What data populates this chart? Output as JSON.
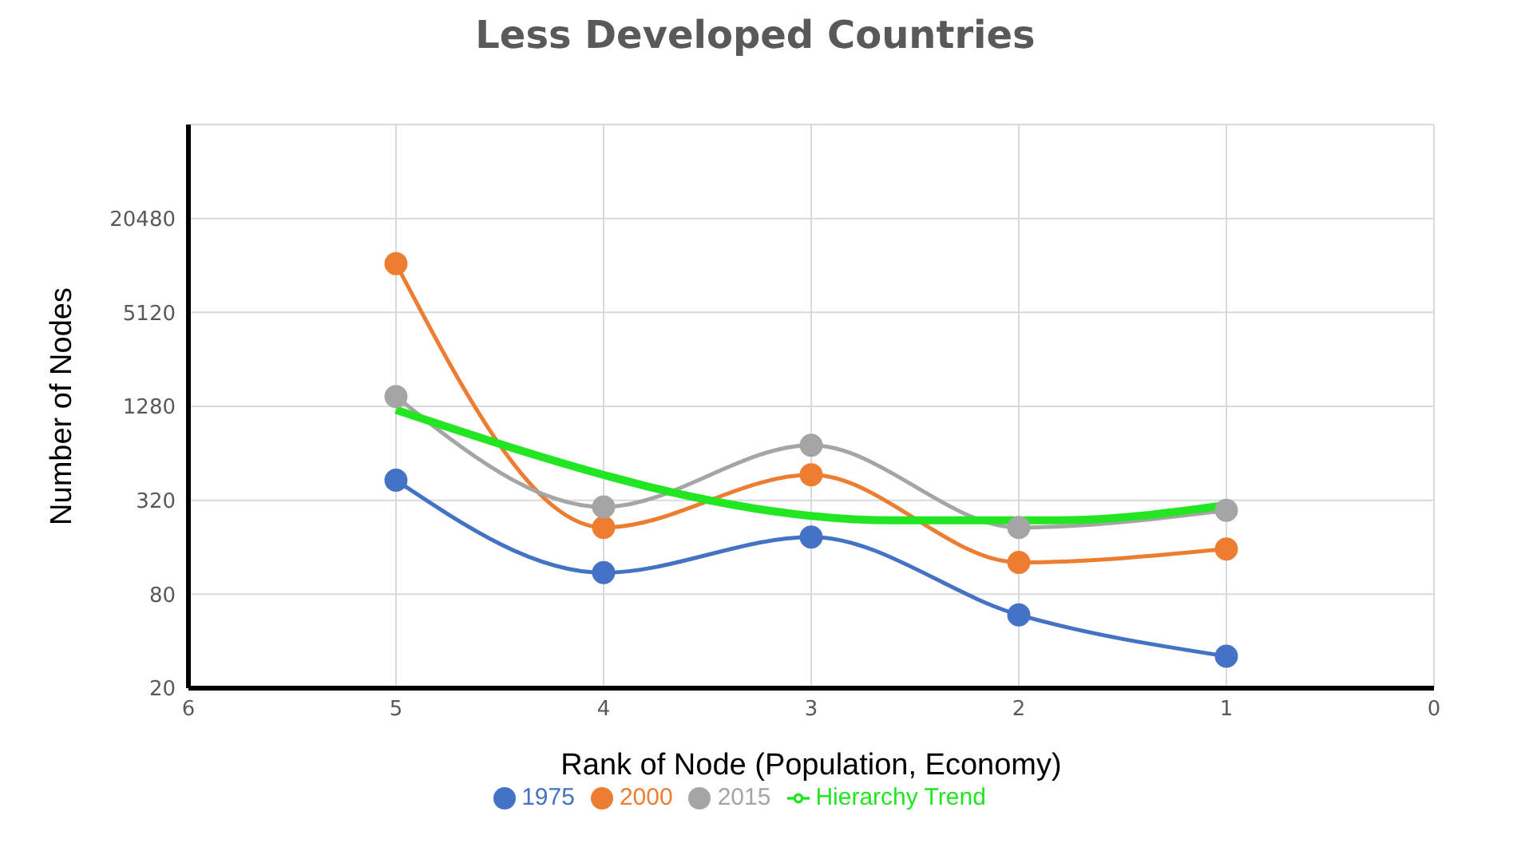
{
  "chart_data": {
    "type": "line",
    "title": "Less Developed Countries",
    "xlabel": "Rank of Node (Population, Economy)",
    "ylabel": "Number of Nodes",
    "x": [
      5,
      4,
      3,
      2,
      1
    ],
    "series": [
      {
        "name": "1975",
        "color": "#4472c4",
        "values": [
          430,
          110,
          186,
          59,
          32
        ]
      },
      {
        "name": "2000",
        "color": "#ed7d31",
        "values": [
          10500,
          214,
          466,
          128,
          156
        ]
      },
      {
        "name": "2015",
        "color": "#a5a5a5",
        "values": [
          1480,
          290,
          720,
          214,
          276
        ]
      },
      {
        "name": "Hierarchy Trend",
        "color": "#22e622",
        "x": [
          5,
          2.6,
          1.8,
          1
        ],
        "values": [
          1215,
          238,
          238,
          298
        ],
        "marker": "none"
      }
    ],
    "log": "y",
    "xlim": [
      6,
      0
    ],
    "xticks": [
      6,
      5,
      4,
      3,
      2,
      1,
      0
    ],
    "ylim": [
      20,
      81920
    ],
    "yticks": [
      20,
      80,
      320,
      1280,
      5120,
      20480
    ],
    "grid": true,
    "legend": "bottom",
    "marker": "circle"
  }
}
